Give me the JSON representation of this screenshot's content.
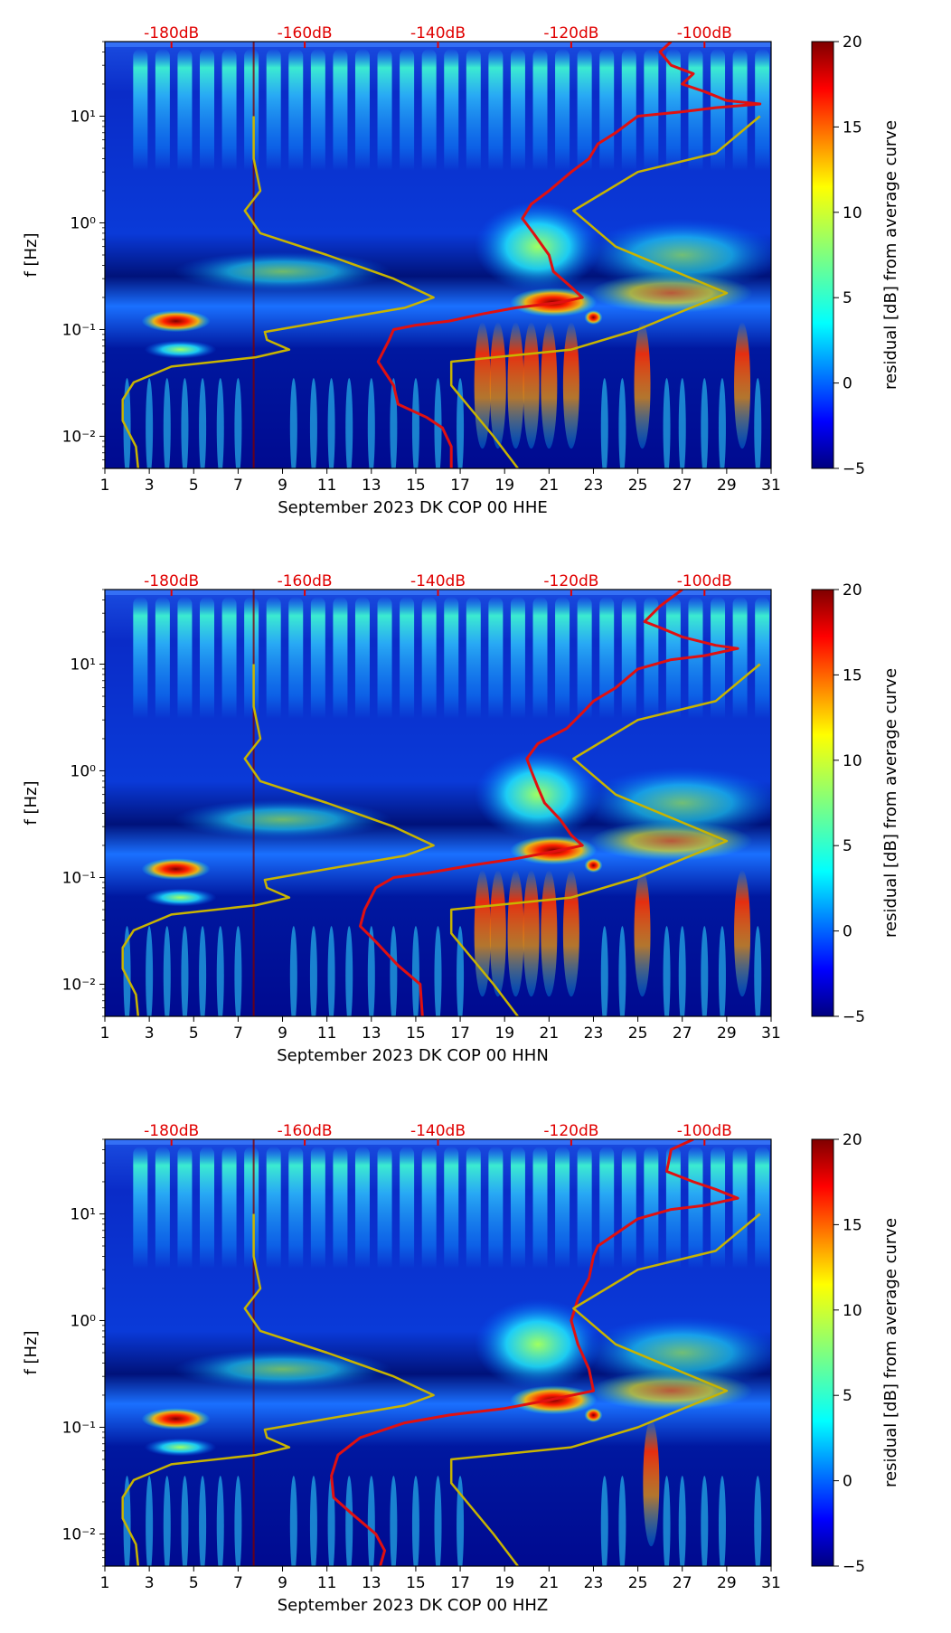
{
  "colormap": [
    "#00007f",
    "#0000ff",
    "#007fff",
    "#00ffff",
    "#7fff7f",
    "#ffff00",
    "#ff7f00",
    "#ff0000",
    "#7f0000"
  ],
  "colors": {
    "model_curve": "#e01010",
    "noise_model": "#c8b400",
    "db_labels": "#e00000"
  },
  "chart_data": [
    {
      "type": "heatmap",
      "title": "",
      "xlabel": "September 2023 DK COP 00 HHE",
      "ylabel": "f [Hz]",
      "x_ticks": [
        1,
        3,
        5,
        7,
        9,
        11,
        13,
        15,
        17,
        19,
        21,
        23,
        25,
        27,
        29,
        31
      ],
      "x_tick_labels": [
        "1",
        "3",
        "5",
        "7",
        "9",
        "11",
        "13",
        "15",
        "17",
        "19",
        "21",
        "23",
        "25",
        "27",
        "29",
        "31"
      ],
      "xlim": [
        1,
        31
      ],
      "y_scale": "log",
      "ylim": [
        0.005,
        50
      ],
      "y_ticks": [
        0.01,
        0.1,
        1,
        10
      ],
      "y_tick_labels": [
        "10⁻²",
        "10⁻¹",
        "10⁰",
        "10¹"
      ],
      "db_axis_labels": [
        "-180dB",
        "-160dB",
        "-140dB",
        "-120dB",
        "-100dB"
      ],
      "db_axis_positions": [
        4,
        10,
        16,
        22,
        28
      ],
      "colorbar": {
        "label": "residual [dB] from average curve",
        "range": [
          -5,
          20
        ],
        "ticks": [
          -5,
          0,
          5,
          10,
          15,
          20
        ],
        "tick_labels": [
          "−5",
          "0",
          "5",
          "10",
          "15",
          "20"
        ]
      },
      "series": [
        {
          "name": "red_curve",
          "x": [
            26.5,
            26,
            26.5,
            27.5,
            27,
            28,
            29,
            30.5,
            28.5,
            27,
            25,
            24,
            23.2,
            22.8,
            22,
            21,
            20.2,
            19.8,
            20.3,
            21,
            21.2,
            22,
            22.5,
            21.5,
            19.5,
            18,
            16.5,
            15,
            14,
            13.8,
            13.3,
            14,
            14.2,
            15.5,
            16.2,
            16.6,
            16.6
          ],
          "y": [
            50,
            40,
            30,
            25,
            20,
            17,
            14,
            13,
            12,
            11,
            10,
            7,
            5.5,
            4,
            3,
            2,
            1.5,
            1.1,
            0.8,
            0.5,
            0.35,
            0.25,
            0.2,
            0.18,
            0.16,
            0.14,
            0.12,
            0.11,
            0.1,
            0.08,
            0.05,
            0.03,
            0.02,
            0.015,
            0.012,
            0.008,
            0.005
          ]
        },
        {
          "name": "olive_curve",
          "x": [
            2.5,
            2.4,
            1.8,
            1.8,
            2.3,
            4,
            7.8,
            9.3,
            8.3,
            8.2,
            11,
            14.5,
            15.8,
            14,
            11,
            8,
            7.3,
            8,
            7.7,
            7.7
          ],
          "y": [
            0.005,
            0.008,
            0.014,
            0.022,
            0.032,
            0.045,
            0.055,
            0.065,
            0.08,
            0.095,
            0.12,
            0.16,
            0.2,
            0.3,
            0.5,
            0.8,
            1.3,
            2,
            4,
            10
          ]
        },
        {
          "name": "olive_curve_right",
          "x": [
            19.6,
            18.5,
            16.6,
            16.6,
            22,
            25,
            29,
            24,
            22.1,
            25,
            28.5,
            30.5
          ],
          "y": [
            0.005,
            0.01,
            0.03,
            0.05,
            0.065,
            0.1,
            0.22,
            0.6,
            1.3,
            3,
            4.5,
            10
          ]
        }
      ]
    },
    {
      "type": "heatmap",
      "title": "",
      "xlabel": "September 2023 DK COP 00 HHN",
      "ylabel": "f [Hz]",
      "x_ticks": [
        1,
        3,
        5,
        7,
        9,
        11,
        13,
        15,
        17,
        19,
        21,
        23,
        25,
        27,
        29,
        31
      ],
      "x_tick_labels": [
        "1",
        "3",
        "5",
        "7",
        "9",
        "11",
        "13",
        "15",
        "17",
        "19",
        "21",
        "23",
        "25",
        "27",
        "29",
        "31"
      ],
      "xlim": [
        1,
        31
      ],
      "y_scale": "log",
      "ylim": [
        0.005,
        50
      ],
      "y_ticks": [
        0.01,
        0.1,
        1,
        10
      ],
      "y_tick_labels": [
        "10⁻²",
        "10⁻¹",
        "10⁰",
        "10¹"
      ],
      "db_axis_labels": [
        "-180dB",
        "-160dB",
        "-140dB",
        "-120dB",
        "-100dB"
      ],
      "db_axis_positions": [
        4,
        10,
        16,
        22,
        28
      ],
      "colorbar": {
        "label": "residual [dB] from average curve",
        "range": [
          -5,
          20
        ],
        "ticks": [
          -5,
          0,
          5,
          10,
          15,
          20
        ],
        "tick_labels": [
          "−5",
          "0",
          "5",
          "10",
          "15",
          "20"
        ]
      },
      "series": [
        {
          "name": "red_curve",
          "x": [
            27,
            26,
            25.3,
            26,
            27,
            28.5,
            29.5,
            28,
            26.5,
            25,
            24,
            23,
            22.5,
            21.8,
            20.5,
            20,
            20.2,
            20.5,
            20.8,
            21.5,
            22,
            22.5,
            21.5,
            19.5,
            17.5,
            15.5,
            14,
            13.2,
            12.7,
            12.5,
            13.2,
            14.2,
            15.2,
            15.3
          ],
          "y": [
            50,
            35,
            25,
            22,
            18,
            15,
            14,
            12,
            11,
            9,
            6,
            4.5,
            3.5,
            2.5,
            1.8,
            1.3,
            1,
            0.7,
            0.5,
            0.35,
            0.25,
            0.2,
            0.18,
            0.15,
            0.13,
            0.11,
            0.1,
            0.08,
            0.05,
            0.035,
            0.025,
            0.015,
            0.01,
            0.005
          ]
        },
        {
          "name": "olive_curve",
          "x": [
            2.5,
            2.4,
            1.8,
            1.8,
            2.3,
            4,
            7.8,
            9.3,
            8.3,
            8.2,
            11,
            14.5,
            15.8,
            14,
            11,
            8,
            7.3,
            8,
            7.7,
            7.7
          ],
          "y": [
            0.005,
            0.008,
            0.014,
            0.022,
            0.032,
            0.045,
            0.055,
            0.065,
            0.08,
            0.095,
            0.12,
            0.16,
            0.2,
            0.3,
            0.5,
            0.8,
            1.3,
            2,
            4,
            10
          ]
        },
        {
          "name": "olive_curve_right",
          "x": [
            19.6,
            18.5,
            16.6,
            16.6,
            22,
            25,
            29,
            24,
            22.1,
            25,
            28.5,
            30.5
          ],
          "y": [
            0.005,
            0.01,
            0.03,
            0.05,
            0.065,
            0.1,
            0.22,
            0.6,
            1.3,
            3,
            4.5,
            10
          ]
        }
      ]
    },
    {
      "type": "heatmap",
      "title": "",
      "xlabel": "September 2023 DK COP 00 HHZ",
      "ylabel": "f [Hz]",
      "x_ticks": [
        1,
        3,
        5,
        7,
        9,
        11,
        13,
        15,
        17,
        19,
        21,
        23,
        25,
        27,
        29,
        31
      ],
      "x_tick_labels": [
        "1",
        "3",
        "5",
        "7",
        "9",
        "11",
        "13",
        "15",
        "17",
        "19",
        "21",
        "23",
        "25",
        "27",
        "29",
        "31"
      ],
      "xlim": [
        1,
        31
      ],
      "y_scale": "log",
      "ylim": [
        0.005,
        50
      ],
      "y_ticks": [
        0.01,
        0.1,
        1,
        10
      ],
      "y_tick_labels": [
        "10⁻²",
        "10⁻¹",
        "10⁰",
        "10¹"
      ],
      "db_axis_labels": [
        "-180dB",
        "-160dB",
        "-140dB",
        "-120dB",
        "-100dB"
      ],
      "db_axis_positions": [
        4,
        10,
        16,
        22,
        28
      ],
      "colorbar": {
        "label": "residual [dB] from average curve",
        "range": [
          -5,
          20
        ],
        "ticks": [
          -5,
          0,
          5,
          10,
          15,
          20
        ],
        "tick_labels": [
          "−5",
          "0",
          "5",
          "10",
          "15",
          "20"
        ]
      },
      "series": [
        {
          "name": "red_curve",
          "x": [
            27.5,
            26.5,
            26.3,
            27.5,
            28.5,
            29.5,
            28,
            26.5,
            25,
            24,
            23.2,
            23,
            22.8,
            22.3,
            22,
            22.3,
            22.8,
            23,
            21,
            19,
            16.5,
            14.5,
            12.5,
            11.5,
            11.2,
            11.3,
            12.2,
            13.2,
            13.6,
            13.4
          ],
          "y": [
            50,
            40,
            25,
            20,
            17,
            14,
            12,
            11,
            9,
            6.5,
            5,
            4,
            2.5,
            1.6,
            1,
            0.6,
            0.35,
            0.22,
            0.18,
            0.15,
            0.13,
            0.11,
            0.08,
            0.055,
            0.035,
            0.022,
            0.015,
            0.01,
            0.007,
            0.005
          ]
        },
        {
          "name": "olive_curve",
          "x": [
            2.5,
            2.4,
            1.8,
            1.8,
            2.3,
            4,
            7.8,
            9.3,
            8.3,
            8.2,
            11,
            14.5,
            15.8,
            14,
            11,
            8,
            7.3,
            8,
            7.7,
            7.7
          ],
          "y": [
            0.005,
            0.008,
            0.014,
            0.022,
            0.032,
            0.045,
            0.055,
            0.065,
            0.08,
            0.095,
            0.12,
            0.16,
            0.2,
            0.3,
            0.5,
            0.8,
            1.3,
            2,
            4,
            10
          ]
        },
        {
          "name": "olive_curve_right",
          "x": [
            19.6,
            18.5,
            16.6,
            16.6,
            22,
            25,
            29,
            24,
            22.1,
            25,
            28.5,
            30.5
          ],
          "y": [
            0.005,
            0.01,
            0.03,
            0.05,
            0.065,
            0.1,
            0.22,
            0.6,
            1.3,
            3,
            4.5,
            10
          ]
        }
      ]
    }
  ]
}
